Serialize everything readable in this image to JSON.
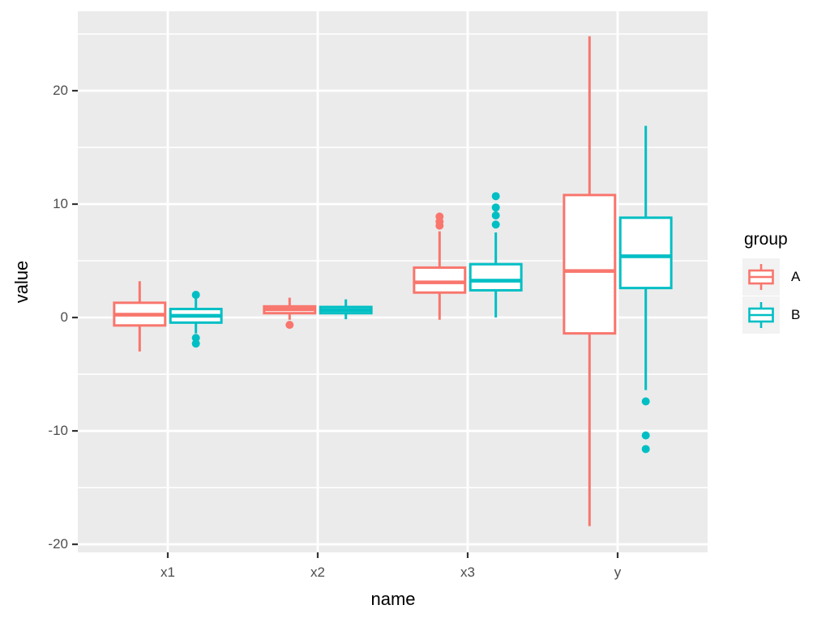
{
  "chart_data": {
    "type": "boxplot",
    "title": "",
    "xlabel": "name",
    "ylabel": "value",
    "categories": [
      "x1",
      "x2",
      "x3",
      "y"
    ],
    "legend": {
      "title": "group",
      "position": "right"
    },
    "series": [
      {
        "name": "A",
        "color": "#F8766D",
        "boxes": [
          {
            "category": "x1",
            "q1": -0.7,
            "median": 0.25,
            "q3": 1.3,
            "whisker_low": -3.0,
            "whisker_high": 3.2,
            "outliers": []
          },
          {
            "category": "x2",
            "q1": 0.38,
            "median": 0.72,
            "q3": 0.98,
            "whisker_low": -0.2,
            "whisker_high": 1.75,
            "outliers": [
              -0.65
            ]
          },
          {
            "category": "x3",
            "q1": 2.2,
            "median": 3.1,
            "q3": 4.4,
            "whisker_low": -0.2,
            "whisker_high": 7.6,
            "outliers": [
              8.1,
              8.45,
              8.9
            ]
          },
          {
            "category": "y",
            "q1": -1.4,
            "median": 4.1,
            "q3": 10.8,
            "whisker_low": -18.4,
            "whisker_high": 24.8,
            "outliers": []
          }
        ]
      },
      {
        "name": "B",
        "color": "#00BFC4",
        "boxes": [
          {
            "category": "x1",
            "q1": -0.45,
            "median": 0.15,
            "q3": 0.75,
            "whisker_low": -1.4,
            "whisker_high": 1.7,
            "outliers": [
              2.0,
              -1.8,
              -2.3
            ]
          },
          {
            "category": "x2",
            "q1": 0.38,
            "median": 0.65,
            "q3": 0.93,
            "whisker_low": -0.15,
            "whisker_high": 1.6,
            "outliers": []
          },
          {
            "category": "x3",
            "q1": 2.4,
            "median": 3.25,
            "q3": 4.7,
            "whisker_low": 0.0,
            "whisker_high": 7.5,
            "outliers": [
              8.2,
              9.0,
              9.7,
              10.7
            ]
          },
          {
            "category": "y",
            "q1": 2.6,
            "median": 5.4,
            "q3": 8.8,
            "whisker_low": -6.4,
            "whisker_high": 16.9,
            "outliers": [
              -7.4,
              -10.4,
              -11.6
            ]
          }
        ]
      }
    ],
    "y_axis": {
      "ticks": [
        -20,
        -10,
        0,
        10,
        20
      ],
      "tick_labels": [
        "-20",
        "-10",
        "0",
        "10",
        "20"
      ],
      "minor_ticks": [
        -15,
        -5,
        5,
        15,
        25
      ],
      "min": -20.71,
      "max": 27.0,
      "grid": true
    },
    "x_axis": {
      "tick_labels": [
        "x1",
        "x2",
        "x3",
        "y"
      ],
      "domain_min": 0.4,
      "domain_max": 4.6
    },
    "colors": {
      "panel_bg": "#EBEBEB",
      "grid": "#FFFFFF",
      "tick_text": "#4D4D4D",
      "title_text": "#000000",
      "tick_mark": "#333333",
      "legend_key_bg": "#F2F2F2",
      "box_fill": "#FFFFFF"
    }
  }
}
